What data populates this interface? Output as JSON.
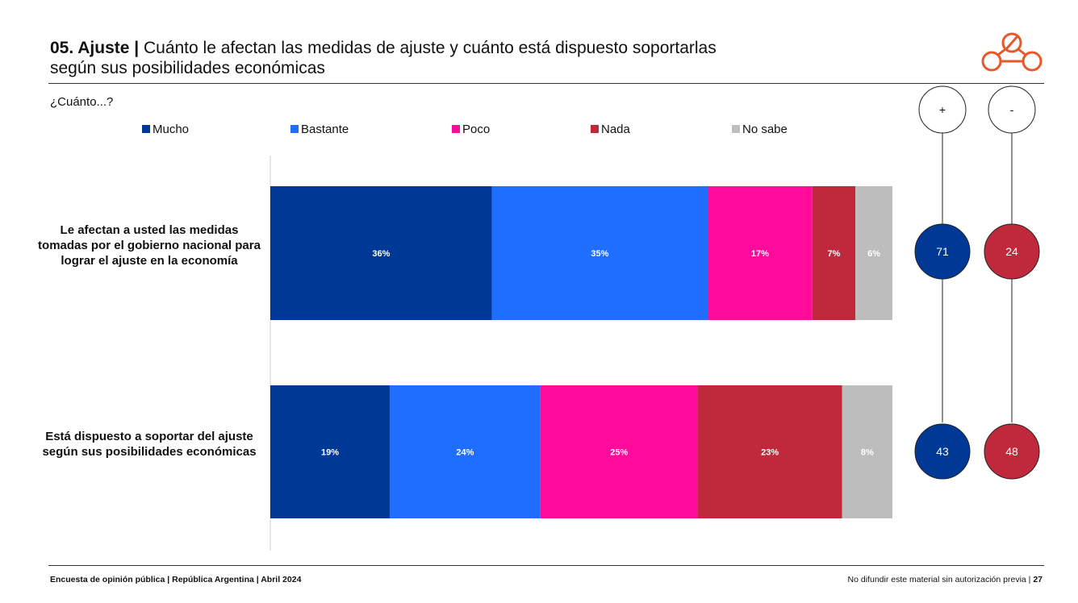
{
  "header": {
    "title_bold": "05. Ajuste |",
    "title_rest": " Cuánto le afectan las medidas de ajuste y cuánto está dispuesto soportarlas",
    "title_line2": "según sus posibilidades económicas",
    "question": "¿Cuánto...?"
  },
  "colors": {
    "mucho": "#003896",
    "bastante": "#1f6eff",
    "poco": "#ff0a9a",
    "nada": "#c0283c",
    "no_sabe": "#bdbdbd",
    "logo": "#e8582a"
  },
  "chart_data": {
    "type": "bar",
    "orientation": "horizontal",
    "stacked": true,
    "categories": [
      "Le afectan a usted las medidas tomadas por el gobierno nacional para lograr el ajuste en la economía",
      "Está dispuesto a soportar del ajuste según sus posibilidades económicas"
    ],
    "series": [
      {
        "name": "Mucho",
        "values": [
          36,
          19
        ],
        "labels": [
          "36%",
          "19%"
        ]
      },
      {
        "name": "Bastante",
        "values": [
          35,
          24
        ],
        "labels": [
          "35%",
          "24%"
        ]
      },
      {
        "name": "Poco",
        "values": [
          17,
          25
        ],
        "labels": [
          "17%",
          "25%"
        ]
      },
      {
        "name": "Nada",
        "values": [
          7,
          23
        ],
        "labels": [
          "7%",
          "23%"
        ]
      },
      {
        "name": "No sabe",
        "values": [
          6,
          8
        ],
        "labels": [
          "6%",
          "8%"
        ]
      }
    ],
    "summary": {
      "plus_header": "+",
      "minus_header": "-",
      "plus": [
        "71",
        "43"
      ],
      "minus": [
        "24",
        "48"
      ]
    },
    "legend_position": "top"
  },
  "row_labels": [
    "Le afectan a usted las medidas tomadas por el gobierno nacional para lograr el ajuste en la economía",
    "Está dispuesto a soportar del ajuste según sus posibilidades económicas"
  ],
  "footer": {
    "left": "Encuesta de opinión pública | República Argentina | Abril 2024",
    "right_text": "No difundir este material sin autorización previa | ",
    "page": "27"
  }
}
